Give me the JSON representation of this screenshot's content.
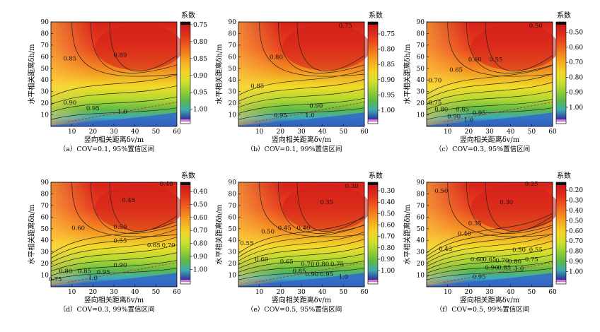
{
  "figure": {
    "xlabel": "竖向相关距离δv/m",
    "ylabel": "水平相关距离δh/m",
    "colorbar_title": "系数"
  },
  "chart_data": [
    {
      "type": "heatmap",
      "caption": "（a）COV=0.1, 95%置信区间",
      "xlabel": "竖向相关距离δv/m",
      "ylabel": "水平相关距离δh/m",
      "xlim": [
        0,
        60
      ],
      "ylim": [
        0,
        90
      ],
      "xticks": [
        10,
        20,
        30,
        40,
        50,
        60
      ],
      "yticks": [
        10,
        20,
        30,
        40,
        50,
        60,
        70,
        80,
        90
      ],
      "colorbar": {
        "title": "系数",
        "ticks": [
          "0.75",
          "0.80",
          "0.85",
          "0.90",
          "0.95",
          "1.00"
        ],
        "range": [
          0.75,
          1.03
        ]
      },
      "contour_labels": [
        {
          "text": "0.85",
          "x": 9,
          "y": 57
        },
        {
          "text": "0.80",
          "x": 33,
          "y": 60
        },
        {
          "text": "0.90",
          "x": 9,
          "y": 19
        },
        {
          "text": "0.95",
          "x": 20,
          "y": 14
        },
        {
          "text": "1.0",
          "x": 34,
          "y": 11
        }
      ]
    },
    {
      "type": "heatmap",
      "caption": "（b）COV=0.1, 99%置信区间",
      "xlabel": "竖向相关距离δv/m",
      "ylabel": "水平相关距离δh/m",
      "xlim": [
        0,
        60
      ],
      "ylim": [
        0,
        90
      ],
      "xticks": [
        10,
        20,
        30,
        40,
        50,
        60
      ],
      "yticks": [
        10,
        20,
        30,
        40,
        50,
        60,
        70,
        80,
        90
      ],
      "colorbar": {
        "title": "系数",
        "ticks": [
          "0.75",
          "0.80",
          "0.85",
          "0.90",
          "0.95",
          "1.00"
        ],
        "range": [
          0.72,
          1.03
        ]
      },
      "contour_labels": [
        {
          "text": "0.75",
          "x": 51,
          "y": 85
        },
        {
          "text": "0.80",
          "x": 18,
          "y": 58
        },
        {
          "text": "0.85",
          "x": 9,
          "y": 33
        },
        {
          "text": "0.90",
          "x": 37,
          "y": 16
        },
        {
          "text": "0.95",
          "x": 20,
          "y": 8
        },
        {
          "text": "1.0",
          "x": 34,
          "y": 8
        }
      ]
    },
    {
      "type": "heatmap",
      "caption": "（c）COV=0.3, 95%置信区间",
      "xlabel": "竖向相关距离δv/m",
      "ylabel": "水平相关距离δh/m",
      "xlim": [
        0,
        60
      ],
      "ylim": [
        0,
        90
      ],
      "xticks": [
        10,
        20,
        30,
        40,
        50,
        60
      ],
      "yticks": [
        10,
        20,
        30,
        40,
        50,
        60,
        70,
        80,
        90
      ],
      "colorbar": {
        "title": "系数",
        "ticks": [
          "0.50",
          "0.60",
          "0.70",
          "0.80",
          "0.90",
          "1.00"
        ],
        "range": [
          0.45,
          1.08
        ]
      },
      "contour_labels": [
        {
          "text": "0.50",
          "x": 52,
          "y": 85
        },
        {
          "text": "0.60",
          "x": 23,
          "y": 56
        },
        {
          "text": "0.55",
          "x": 33,
          "y": 56
        },
        {
          "text": "0.65",
          "x": 14,
          "y": 47
        },
        {
          "text": "0.70",
          "x": 4,
          "y": 38
        },
        {
          "text": "0.75",
          "x": 4,
          "y": 19
        },
        {
          "text": "0.80",
          "x": 7,
          "y": 13
        },
        {
          "text": "0.85",
          "x": 17,
          "y": 13
        },
        {
          "text": "0.90",
          "x": 13,
          "y": 7
        },
        {
          "text": "0.95",
          "x": 25,
          "y": 10
        },
        {
          "text": "1.0",
          "x": 20,
          "y": 4
        }
      ]
    },
    {
      "type": "heatmap",
      "caption": "（d）COV=0.3, 99%置信区间",
      "xlabel": "竖向相关距离δv/m",
      "ylabel": "水平相关距离δh/m",
      "xlim": [
        0,
        60
      ],
      "ylim": [
        0,
        90
      ],
      "xticks": [
        10,
        20,
        30,
        40,
        50,
        60
      ],
      "yticks": [
        10,
        20,
        30,
        40,
        50,
        60,
        70,
        80,
        90
      ],
      "colorbar": {
        "title": "系数",
        "ticks": [
          "0.40",
          "0.50",
          "0.60",
          "0.70",
          "0.80",
          "0.90",
          "1.00"
        ],
        "range": [
          0.35,
          1.08
        ]
      },
      "contour_labels": [
        {
          "text": "0.40",
          "x": 55,
          "y": 87
        },
        {
          "text": "0.45",
          "x": 37,
          "y": 73
        },
        {
          "text": "0.60",
          "x": 13,
          "y": 49
        },
        {
          "text": "0.50",
          "x": 33,
          "y": 50
        },
        {
          "text": "0.55",
          "x": 33,
          "y": 38
        },
        {
          "text": "0.65",
          "x": 49,
          "y": 34
        },
        {
          "text": "0.70",
          "x": 56,
          "y": 34
        },
        {
          "text": "0.90",
          "x": 33,
          "y": 17
        },
        {
          "text": "0.80",
          "x": 7,
          "y": 12
        },
        {
          "text": "0.85",
          "x": 16,
          "y": 12
        },
        {
          "text": "0.95",
          "x": 25,
          "y": 11
        },
        {
          "text": "0.75",
          "x": 2,
          "y": 5
        },
        {
          "text": "1.0",
          "x": 20,
          "y": 6
        }
      ]
    },
    {
      "type": "heatmap",
      "caption": "（e）COV=0.5, 95%置信区间",
      "xlabel": "竖向相关距离δv/m",
      "ylabel": "水平相关距离δh/m",
      "xlim": [
        0,
        60
      ],
      "ylim": [
        0,
        90
      ],
      "xticks": [
        10,
        20,
        30,
        40,
        50,
        60
      ],
      "yticks": [
        10,
        20,
        30,
        40,
        50,
        60,
        70,
        80,
        90
      ],
      "colorbar": {
        "title": "系数",
        "ticks": [
          "0.30",
          "0.40",
          "0.50",
          "0.60",
          "0.70",
          "0.80",
          "0.90",
          "1.00"
        ],
        "range": [
          0.25,
          1.08
        ]
      },
      "contour_labels": [
        {
          "text": "0.30",
          "x": 54,
          "y": 85
        },
        {
          "text": "0.35",
          "x": 42,
          "y": 71
        },
        {
          "text": "0.45",
          "x": 22,
          "y": 49
        },
        {
          "text": "0.40",
          "x": 31,
          "y": 49
        },
        {
          "text": "0.50",
          "x": 14,
          "y": 46
        },
        {
          "text": "0.55",
          "x": 4,
          "y": 36
        },
        {
          "text": "0.60",
          "x": 11,
          "y": 22
        },
        {
          "text": "0.65",
          "x": 23,
          "y": 20
        },
        {
          "text": "0.70",
          "x": 33,
          "y": 18
        },
        {
          "text": "0.80",
          "x": 40,
          "y": 18
        },
        {
          "text": "0.75",
          "x": 47,
          "y": 18
        },
        {
          "text": "0.85",
          "x": 29,
          "y": 12
        },
        {
          "text": "0.90",
          "x": 35,
          "y": 9
        },
        {
          "text": "0.95",
          "x": 42,
          "y": 9
        },
        {
          "text": "1.0",
          "x": 50,
          "y": 7
        }
      ]
    },
    {
      "type": "heatmap",
      "caption": "（f）COV=0.5, 99%置信区间",
      "xlabel": "竖向相关距离δv/m",
      "ylabel": "水平相关距离δh/m",
      "xlim": [
        0,
        60
      ],
      "ylim": [
        0,
        90
      ],
      "xticks": [
        10,
        20,
        30,
        40,
        50,
        60
      ],
      "yticks": [
        10,
        20,
        30,
        40,
        50,
        60,
        70,
        80,
        90
      ],
      "colorbar": {
        "title": "系数",
        "ticks": [
          "0.20",
          "0.30",
          "0.40",
          "0.50",
          "0.60",
          "0.70",
          "0.80",
          "0.90",
          "1.00"
        ],
        "range": [
          0.15,
          1.08
        ]
      },
      "contour_labels": [
        {
          "text": "0.50",
          "x": 7,
          "y": 81
        },
        {
          "text": "0.25",
          "x": 50,
          "y": 87
        },
        {
          "text": "0.30",
          "x": 38,
          "y": 71
        },
        {
          "text": "0.35",
          "x": 23,
          "y": 53
        },
        {
          "text": "0.40",
          "x": 18,
          "y": 44
        },
        {
          "text": "0.45",
          "x": 9,
          "y": 31
        },
        {
          "text": "0.50",
          "x": 44,
          "y": 30
        },
        {
          "text": "0.55",
          "x": 52,
          "y": 30
        },
        {
          "text": "0.60",
          "x": 24,
          "y": 22
        },
        {
          "text": "0.65",
          "x": 30,
          "y": 22
        },
        {
          "text": "0.70",
          "x": 36,
          "y": 21
        },
        {
          "text": "0.80",
          "x": 42,
          "y": 20
        },
        {
          "text": "0.75",
          "x": 50,
          "y": 22
        },
        {
          "text": "0.90",
          "x": 31,
          "y": 15
        },
        {
          "text": "0.85",
          "x": 37,
          "y": 15
        },
        {
          "text": "1.0",
          "x": 44,
          "y": 14
        },
        {
          "text": "0.95",
          "x": 25,
          "y": 7
        }
      ]
    }
  ]
}
